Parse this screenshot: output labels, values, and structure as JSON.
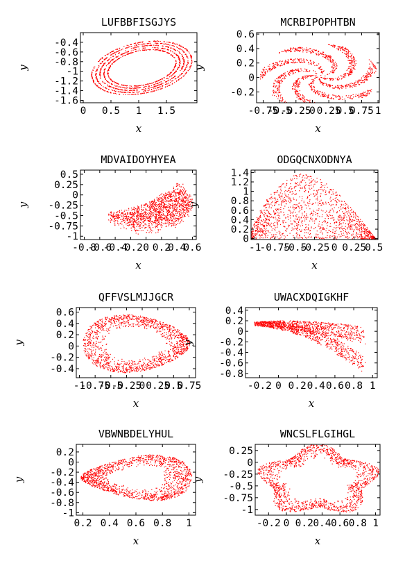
{
  "figure": {
    "marker_color": "#ff0000",
    "background": "#ffffff"
  },
  "chart_data": [
    {
      "type": "scatter",
      "title": "LUFBBFISGJYS",
      "xlabel": "x",
      "ylabel": "y",
      "xlim": [
        -0.05,
        2.05
      ],
      "ylim": [
        -1.65,
        -0.2
      ],
      "x_ticks": [
        "0",
        "0.5",
        "1",
        "1.5"
      ],
      "x_tick_values": [
        0,
        0.5,
        1,
        1.5
      ],
      "y_ticks": [
        "-0.4",
        "-0.6",
        "-0.8",
        "-1",
        "-1.2",
        "-1.4",
        "-1.6"
      ],
      "y_tick_values": [
        -0.4,
        -0.6,
        -0.8,
        -1,
        -1.2,
        -1.4,
        -1.6
      ],
      "grid": false,
      "shape": "ellipse",
      "shape_params": {
        "cx": 1.05,
        "cy": -0.92,
        "rx": 0.92,
        "ry": 0.52,
        "rot": 0.25,
        "bands": 5,
        "thickness": 0.05
      }
    },
    {
      "type": "scatter",
      "title": "MCRBIPOPHTBN",
      "xlabel": "x",
      "ylabel": "y",
      "xlim": [
        -0.85,
        1.02
      ],
      "ylim": [
        -0.35,
        0.62
      ],
      "x_ticks": [
        "-0.75",
        "-0.5",
        "-0.25",
        "0",
        "0.25",
        "0.5",
        "0.75",
        "1"
      ],
      "x_tick_values": [
        -0.75,
        -0.5,
        -0.25,
        0,
        0.25,
        0.5,
        0.75,
        1
      ],
      "y_ticks": [
        "0.6",
        "0.4",
        "0.2",
        "0",
        "-0.2"
      ],
      "y_tick_values": [
        0.6,
        0.4,
        0.2,
        0,
        -0.2
      ],
      "grid": false,
      "shape": "spiral",
      "shape_params": {
        "cx": 0.1,
        "cy": 0.02,
        "rx": 0.9,
        "ry": 0.45,
        "arms": 7
      }
    },
    {
      "type": "scatter",
      "title": "MDVAIDOYHYEA",
      "xlabel": "x",
      "ylabel": "y",
      "xlim": [
        -0.85,
        0.65
      ],
      "ylim": [
        -1.08,
        0.6
      ],
      "x_ticks": [
        "-0.8",
        "-0.6",
        "-0.4",
        "-0.2",
        "0",
        "0.2",
        "0.4",
        "0.6"
      ],
      "x_tick_values": [
        -0.8,
        -0.6,
        -0.4,
        -0.2,
        0,
        0.2,
        0.4,
        0.6
      ],
      "y_ticks": [
        "0.5",
        "0.25",
        "0",
        "-0.25",
        "-0.5",
        "-0.75",
        "-1"
      ],
      "y_tick_values": [
        0.5,
        0.25,
        0,
        -0.25,
        -0.5,
        -0.75,
        -1
      ],
      "grid": false,
      "shape": "fan",
      "shape_params": {
        "cx": 0.0,
        "cy": -0.2,
        "rx": 0.6,
        "ry": 0.7
      }
    },
    {
      "type": "scatter",
      "title": "ODGQCNXODNYA",
      "xlabel": "x",
      "ylabel": "y",
      "xlim": [
        -1.05,
        0.55
      ],
      "ylim": [
        -0.02,
        1.45
      ],
      "x_ticks": [
        "-1",
        "-0.75",
        "-0.5",
        "-0.25",
        "0",
        "0.25",
        "0.5"
      ],
      "x_tick_values": [
        -1,
        -0.75,
        -0.5,
        -0.25,
        0,
        0.25,
        0.5
      ],
      "y_ticks": [
        "1.4",
        "1.2",
        "1",
        "0.8",
        "0.6",
        "0.4",
        "0.2",
        "0"
      ],
      "y_tick_values": [
        1.4,
        1.2,
        1,
        0.8,
        0.6,
        0.4,
        0.2,
        0
      ],
      "grid": false,
      "shape": "arch",
      "shape_params": {
        "cx": -0.3,
        "cy": 0.0,
        "rx": 0.78,
        "ry": 1.38
      }
    },
    {
      "type": "scatter",
      "title": "QFFVSLMJJGCR",
      "xlabel": "x",
      "ylabel": "y",
      "xlim": [
        -1.05,
        0.85
      ],
      "ylim": [
        -0.56,
        0.68
      ],
      "x_ticks": [
        "-1",
        "-0.75",
        "-0.5",
        "-0.25",
        "0",
        "0.25",
        "0.5",
        "0.75"
      ],
      "x_tick_values": [
        -1,
        -0.75,
        -0.5,
        -0.25,
        0,
        0.25,
        0.5,
        0.75
      ],
      "y_ticks": [
        "0.6",
        "0.4",
        "0.2",
        "0",
        "-0.2",
        "-0.4"
      ],
      "y_tick_values": [
        0.6,
        0.4,
        0.2,
        0,
        -0.2,
        -0.4
      ],
      "grid": false,
      "shape": "web",
      "shape_params": {
        "cx": -0.1,
        "cy": 0.05,
        "rx": 0.85,
        "ry": 0.5
      }
    },
    {
      "type": "scatter",
      "title": "UWACXDQIGKHF",
      "xlabel": "x",
      "ylabel": "y",
      "xlim": [
        -0.35,
        1.05
      ],
      "ylim": [
        -0.88,
        0.45
      ],
      "x_ticks": [
        "-0.2",
        "0",
        "0.2",
        "0.4",
        "0.6",
        "0.8",
        "1"
      ],
      "x_tick_values": [
        -0.2,
        0,
        0.2,
        0.4,
        0.6,
        0.8,
        1
      ],
      "y_ticks": [
        "0.4",
        "0.2",
        "0",
        "-0.2",
        "-0.4",
        "-0.6",
        "-0.8"
      ],
      "y_tick_values": [
        0.4,
        0.2,
        0,
        -0.2,
        -0.4,
        -0.6,
        -0.8
      ],
      "grid": false,
      "shape": "horn",
      "shape_params": {
        "cx": 0.4,
        "cy": -0.1,
        "rx": 0.6,
        "ry": 0.6
      }
    },
    {
      "type": "scatter",
      "title": "VBWNBDELYHUL",
      "xlabel": "x",
      "ylabel": "y",
      "xlim": [
        0.15,
        1.05
      ],
      "ylim": [
        -1.05,
        0.35
      ],
      "x_ticks": [
        "0.2",
        "0.4",
        "0.6",
        "0.8",
        "1"
      ],
      "x_tick_values": [
        0.2,
        0.4,
        0.6,
        0.8,
        1
      ],
      "y_ticks": [
        "0.2",
        "0",
        "-0.2",
        "-0.4",
        "-0.6",
        "-0.8",
        "-1"
      ],
      "y_tick_values": [
        0.2,
        0,
        -0.2,
        -0.4,
        -0.6,
        -0.8,
        -1
      ],
      "grid": false,
      "shape": "heart",
      "shape_params": {
        "cx": 0.6,
        "cy": -0.3,
        "rx": 0.42,
        "ry": 0.6
      }
    },
    {
      "type": "scatter",
      "title": "WNCSLFLGIHGL",
      "xlabel": "x",
      "ylabel": "y",
      "xlim": [
        -0.35,
        1.05
      ],
      "ylim": [
        -1.12,
        0.38
      ],
      "x_ticks": [
        "-0.2",
        "0",
        "0.2",
        "0.4",
        "0.6",
        "0.8",
        "1"
      ],
      "x_tick_values": [
        -0.2,
        0,
        0.2,
        0.4,
        0.6,
        0.8,
        1
      ],
      "y_ticks": [
        "0.25",
        "0",
        "-0.25",
        "-0.5",
        "-0.75",
        "-1"
      ],
      "y_tick_values": [
        0.25,
        0,
        -0.25,
        -0.5,
        -0.75,
        -1
      ],
      "grid": false,
      "shape": "blob",
      "shape_params": {
        "cx": 0.35,
        "cy": -0.38,
        "rx": 0.62,
        "ry": 0.68
      }
    }
  ]
}
